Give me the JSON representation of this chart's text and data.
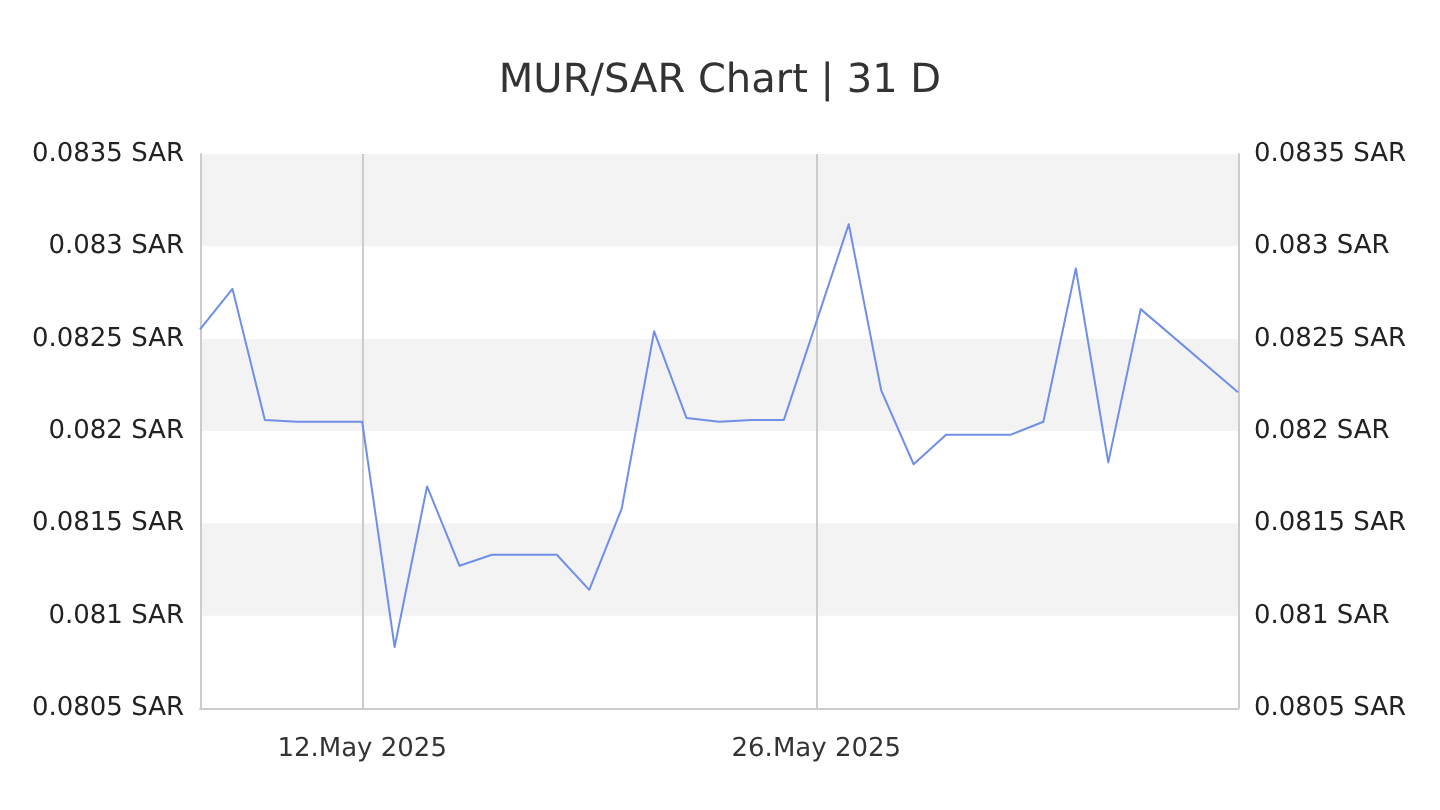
{
  "chart_data": {
    "type": "line",
    "title": "MUR/SAR Chart | 31 D",
    "x": [
      "2025-05-07",
      "2025-05-08",
      "2025-05-09",
      "2025-05-10",
      "2025-05-11",
      "2025-05-12",
      "2025-05-13",
      "2025-05-14",
      "2025-05-15",
      "2025-05-16",
      "2025-05-17",
      "2025-05-18",
      "2025-05-19",
      "2025-05-20",
      "2025-05-21",
      "2025-05-22",
      "2025-05-23",
      "2025-05-24",
      "2025-05-25",
      "2025-05-27",
      "2025-05-28",
      "2025-05-29",
      "2025-05-30",
      "2025-05-31",
      "2025-06-01",
      "2025-06-02",
      "2025-06-03",
      "2025-06-04",
      "2025-06-05",
      "2025-06-08"
    ],
    "series": [
      {
        "color": "#6f8fe8",
        "values": [
          0.08255,
          0.08277,
          0.08206,
          0.08205,
          0.08205,
          0.08205,
          0.08083,
          0.0817,
          0.08127,
          0.08133,
          0.08133,
          0.08133,
          0.08114,
          0.08158,
          0.08254,
          0.08207,
          0.08205,
          0.08206,
          0.08206,
          0.08312,
          0.08222,
          0.08182,
          0.08198,
          0.08198,
          0.08198,
          0.08205,
          0.08288,
          0.08183,
          0.08266,
          0.08221
        ]
      }
    ],
    "xlim": [
      "2025-05-07",
      "2025-06-08"
    ],
    "xticks": [
      {
        "value": "2025-05-12",
        "label": "12.May 2025"
      },
      {
        "value": "2025-05-26",
        "label": "26.May 2025"
      }
    ],
    "ylim": [
      0.0805,
      0.0835
    ],
    "yticks": [
      {
        "value": 0.0805,
        "label": "0.0805 SAR"
      },
      {
        "value": 0.081,
        "label": "0.081 SAR"
      },
      {
        "value": 0.0815,
        "label": "0.0815 SAR"
      },
      {
        "value": 0.082,
        "label": "0.082 SAR"
      },
      {
        "value": 0.0825,
        "label": "0.0825 SAR"
      },
      {
        "value": 0.083,
        "label": "0.083 SAR"
      },
      {
        "value": 0.0835,
        "label": "0.0835 SAR"
      }
    ],
    "y2lim": [
      0.0805,
      0.0835
    ],
    "y2ticks": [
      {
        "value": 0.0805,
        "label": "0.0805 SAR"
      },
      {
        "value": 0.081,
        "label": "0.081 SAR"
      },
      {
        "value": 0.0815,
        "label": "0.0815 SAR"
      },
      {
        "value": 0.082,
        "label": "0.082 SAR"
      },
      {
        "value": 0.0825,
        "label": "0.0825 SAR"
      },
      {
        "value": 0.083,
        "label": "0.083 SAR"
      },
      {
        "value": 0.0835,
        "label": "0.0835 SAR"
      }
    ],
    "grid": true,
    "marker": "none",
    "line_style": "solid"
  }
}
